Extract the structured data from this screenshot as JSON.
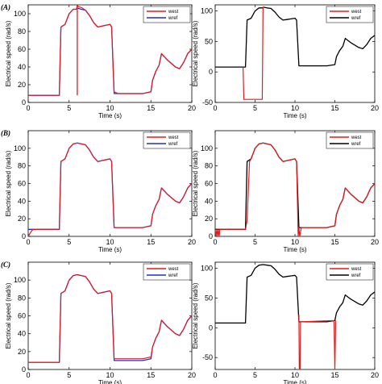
{
  "chart_data": [
    {
      "type": "line",
      "panel": "A-left",
      "row_label": "(A)",
      "xlabel": "Time (s)",
      "ylabel": "Electrical speed (rad/s)",
      "xlim": [
        0,
        20
      ],
      "ylim": [
        0,
        110
      ],
      "xticks": [
        0,
        5,
        10,
        15,
        20
      ],
      "yticks": [
        0,
        20,
        40,
        60,
        80,
        100
      ],
      "legend": "top-right",
      "series": [
        {
          "name": "west",
          "color": "#e8191c",
          "x": [
            0,
            0.5,
            1,
            1.5,
            2,
            2.5,
            3,
            3.5,
            3.8,
            4,
            4.5,
            5,
            5.5,
            5.9,
            6,
            6.1,
            6.5,
            7,
            7.5,
            8,
            8.5,
            9,
            9.5,
            10,
            10.2,
            10.5,
            11,
            12,
            13,
            14,
            15,
            15.2,
            15.6,
            16,
            16.3,
            16.7,
            17,
            17.5,
            18,
            18.5,
            19,
            19.5,
            20
          ],
          "y": [
            8,
            8,
            8,
            8,
            8,
            8,
            8,
            8,
            8,
            85,
            88,
            100,
            105,
            105,
            110,
            108,
            107,
            104,
            98,
            90,
            85,
            86,
            87,
            88,
            85,
            12,
            10,
            10,
            10,
            10,
            12,
            25,
            35,
            42,
            55,
            51,
            48,
            44,
            40,
            38,
            45,
            55,
            60
          ],
          "spike": {
            "x": 6,
            "y_min": 8,
            "y_max": 110
          }
        },
        {
          "name": "wref",
          "color": "#1a2fd6",
          "x": [
            0,
            0.5,
            1,
            1.5,
            2,
            2.5,
            3,
            3.5,
            3.8,
            4,
            4.5,
            5,
            5.5,
            5.9,
            6,
            6.1,
            6.5,
            7,
            7.5,
            8,
            8.5,
            9,
            9.5,
            10,
            10.2,
            10.5,
            11,
            12,
            13,
            14,
            15,
            15.2,
            15.6,
            16,
            16.3,
            16.7,
            17,
            17.5,
            18,
            18.5,
            19,
            19.5,
            20
          ],
          "y": [
            8,
            8,
            8,
            8,
            8,
            8,
            8,
            8,
            8,
            85,
            88,
            100,
            105,
            105,
            106,
            106,
            105,
            104,
            98,
            90,
            85,
            86,
            87,
            88,
            85,
            10,
            10,
            10,
            10,
            10,
            12,
            25,
            35,
            42,
            55,
            51,
            48,
            44,
            40,
            38,
            45,
            55,
            60
          ]
        }
      ]
    },
    {
      "type": "line",
      "panel": "A-right",
      "xlabel": "Time (s)",
      "ylabel": "Electrical speed (rad/s)",
      "xlim": [
        0,
        20
      ],
      "ylim": [
        -50,
        110
      ],
      "xticks": [
        0,
        5,
        10,
        15,
        20
      ],
      "yticks": [
        -50,
        0,
        50,
        100
      ],
      "legend": "top-right",
      "series": [
        {
          "name": "west",
          "color": "#e8191c",
          "x": [
            3.5,
            3.6,
            5.9,
            6,
            6.1
          ],
          "y": [
            8,
            -45,
            -45,
            106,
            106
          ]
        },
        {
          "name": "wref",
          "color": "#000000",
          "x": [
            0,
            0.5,
            1,
            1.5,
            2,
            2.5,
            3,
            3.5,
            3.8,
            4,
            4.5,
            5,
            5.5,
            5.9,
            6,
            6.1,
            6.5,
            7,
            7.5,
            8,
            8.5,
            9,
            9.5,
            10,
            10.2,
            10.5,
            11,
            12,
            13,
            14,
            15,
            15.2,
            15.6,
            16,
            16.3,
            16.7,
            17,
            17.5,
            18,
            18.5,
            19,
            19.5,
            20
          ],
          "y": [
            8,
            8,
            8,
            8,
            8,
            8,
            8,
            8,
            8,
            85,
            88,
            100,
            105,
            105,
            106,
            106,
            105,
            104,
            98,
            90,
            85,
            86,
            87,
            88,
            85,
            10,
            10,
            10,
            10,
            10,
            12,
            25,
            35,
            42,
            55,
            51,
            48,
            44,
            40,
            38,
            45,
            55,
            60
          ]
        }
      ]
    },
    {
      "type": "line",
      "panel": "B-left",
      "row_label": "(B)",
      "xlabel": "Time (s)",
      "ylabel": "Electrical speed (rad/s)",
      "xlim": [
        0,
        20
      ],
      "ylim": [
        0,
        120
      ],
      "xticks": [
        0,
        5,
        10,
        15,
        20
      ],
      "yticks": [
        0,
        20,
        40,
        60,
        80,
        100
      ],
      "legend": "top-right",
      "series": [
        {
          "name": "west",
          "color": "#e8191c",
          "x": [
            0,
            0.2,
            0.4,
            0.6,
            1,
            2,
            3,
            3.5,
            3.8,
            4,
            4.5,
            5,
            5.5,
            6,
            6.5,
            7,
            7.5,
            8,
            8.5,
            9,
            9.5,
            10,
            10.2,
            10.5,
            11,
            12,
            13,
            14,
            15,
            15.2,
            15.6,
            16,
            16.3,
            16.7,
            17,
            17.5,
            18,
            18.5,
            19,
            19.5,
            20
          ],
          "y": [
            0,
            3,
            6,
            8,
            8,
            8,
            8,
            8,
            8,
            85,
            88,
            100,
            105,
            106,
            105,
            104,
            98,
            90,
            85,
            86,
            87,
            88,
            85,
            10,
            10,
            10,
            10,
            10,
            12,
            25,
            35,
            42,
            55,
            51,
            48,
            44,
            40,
            38,
            45,
            55,
            60
          ]
        },
        {
          "name": "wref",
          "color": "#1a2fd6",
          "x": [
            0,
            0.5,
            1,
            1.5,
            2,
            2.5,
            3,
            3.5,
            3.8,
            4,
            4.5,
            5,
            5.5,
            6,
            6.5,
            7,
            7.5,
            8,
            8.5,
            9,
            9.5,
            10,
            10.2,
            10.5,
            11,
            12,
            13,
            14,
            15,
            15.2,
            15.6,
            16,
            16.3,
            16.7,
            17,
            17.5,
            18,
            18.5,
            19,
            19.5,
            20
          ],
          "y": [
            8,
            8,
            8,
            8,
            8,
            8,
            8,
            8,
            8,
            85,
            88,
            100,
            105,
            106,
            105,
            104,
            98,
            90,
            85,
            86,
            87,
            88,
            85,
            10,
            10,
            10,
            10,
            10,
            12,
            25,
            35,
            42,
            55,
            51,
            48,
            44,
            40,
            38,
            45,
            55,
            60
          ]
        }
      ]
    },
    {
      "type": "line",
      "panel": "B-right",
      "xlabel": "Time (s)",
      "ylabel": "Electrical speed (rad/s)",
      "xlim": [
        0,
        20
      ],
      "ylim": [
        0,
        120
      ],
      "xticks": [
        0,
        5,
        10,
        15,
        20
      ],
      "yticks": [
        0,
        20,
        40,
        60,
        80,
        100
      ],
      "legend": "top-right",
      "series": [
        {
          "name": "west",
          "color": "#e8191c",
          "x": [
            0,
            0.1,
            0.2,
            0.3,
            0.4,
            0.5,
            0.6,
            0.8,
            1,
            2,
            3,
            3.5,
            3.8,
            4,
            4.3,
            4.5,
            5,
            5.5,
            6,
            6.5,
            7,
            7.5,
            8,
            8.5,
            9,
            9.5,
            10,
            10.2,
            10.4,
            10.5,
            10.6,
            10.8,
            11,
            12,
            13,
            14,
            15,
            15.2,
            15.6,
            16,
            16.3,
            16.7,
            17,
            17.5,
            18,
            18.5,
            19,
            19.5,
            20
          ],
          "y": [
            8,
            0,
            8,
            0,
            8,
            0,
            8,
            8,
            8,
            8,
            8,
            8,
            8,
            18,
            85,
            88,
            100,
            105,
            106,
            105,
            104,
            98,
            90,
            85,
            86,
            87,
            88,
            85,
            0,
            10,
            0,
            10,
            10,
            10,
            10,
            10,
            12,
            25,
            35,
            42,
            55,
            51,
            48,
            44,
            40,
            38,
            45,
            55,
            60
          ]
        },
        {
          "name": "wref",
          "color": "#000000",
          "x": [
            0,
            0.5,
            1,
            1.5,
            2,
            2.5,
            3,
            3.5,
            3.8,
            4,
            4.5,
            5,
            5.5,
            6,
            6.5,
            7,
            7.5,
            8,
            8.5,
            9,
            9.5,
            10,
            10.2,
            10.5,
            11,
            12,
            13,
            14,
            15,
            15.2,
            15.6,
            16,
            16.3,
            16.7,
            17,
            17.5,
            18,
            18.5,
            19,
            19.5,
            20
          ],
          "y": [
            8,
            8,
            8,
            8,
            8,
            8,
            8,
            8,
            8,
            85,
            88,
            100,
            105,
            106,
            105,
            104,
            98,
            90,
            85,
            86,
            87,
            88,
            85,
            10,
            10,
            10,
            10,
            10,
            12,
            25,
            35,
            42,
            55,
            51,
            48,
            44,
            40,
            38,
            45,
            55,
            60
          ]
        }
      ]
    },
    {
      "type": "line",
      "panel": "C-left",
      "row_label": "(C)",
      "xlabel": "Time (s)",
      "ylabel": "Electrical speed (rad/s)",
      "xlim": [
        0,
        20
      ],
      "ylim": [
        0,
        120
      ],
      "xticks": [
        0,
        5,
        10,
        15,
        20
      ],
      "yticks": [
        0,
        20,
        40,
        60,
        80,
        100
      ],
      "legend": "top-right",
      "series": [
        {
          "name": "west",
          "color": "#e8191c",
          "x": [
            0,
            0.5,
            1,
            1.5,
            2,
            2.5,
            3,
            3.5,
            3.8,
            4,
            4.5,
            5,
            5.5,
            6,
            6.5,
            7,
            7.5,
            8,
            8.5,
            9,
            9.5,
            10,
            10.2,
            10.5,
            11,
            12,
            13,
            14,
            15,
            15.2,
            15.6,
            16,
            16.3,
            16.7,
            17,
            17.5,
            18,
            18.5,
            19,
            19.5,
            20
          ],
          "y": [
            8,
            8,
            8,
            8,
            8,
            8,
            8,
            8,
            8,
            85,
            88,
            100,
            105,
            106,
            105,
            104,
            98,
            90,
            85,
            86,
            87,
            88,
            85,
            12,
            12,
            12,
            12,
            12,
            14,
            25,
            35,
            42,
            55,
            51,
            48,
            44,
            40,
            38,
            45,
            55,
            60
          ]
        },
        {
          "name": "wref",
          "color": "#1a2fd6",
          "x": [
            0,
            0.5,
            1,
            1.5,
            2,
            2.5,
            3,
            3.5,
            3.8,
            4,
            4.5,
            5,
            5.5,
            6,
            6.5,
            7,
            7.5,
            8,
            8.5,
            9,
            9.5,
            10,
            10.2,
            10.5,
            11,
            12,
            13,
            14,
            15,
            15.2,
            15.6,
            16,
            16.3,
            16.7,
            17,
            17.5,
            18,
            18.5,
            19,
            19.5,
            20
          ],
          "y": [
            8,
            8,
            8,
            8,
            8,
            8,
            8,
            8,
            8,
            85,
            88,
            100,
            105,
            106,
            105,
            104,
            98,
            90,
            85,
            86,
            87,
            88,
            85,
            10,
            10,
            10,
            10,
            10,
            12,
            25,
            35,
            42,
            55,
            51,
            48,
            44,
            40,
            38,
            45,
            55,
            60
          ]
        }
      ]
    },
    {
      "type": "line",
      "panel": "C-right",
      "xlabel": "Time (s)",
      "ylabel": "Electrical speed (rad/s)",
      "xlim": [
        0,
        20
      ],
      "ylim": [
        -70,
        110
      ],
      "xticks": [
        0,
        5,
        10,
        15,
        20
      ],
      "yticks": [
        -50,
        0,
        50,
        100
      ],
      "legend": "top-right",
      "series": [
        {
          "name": "west",
          "color": "#e8191c",
          "x": [
            10.5,
            10.55,
            10.65,
            10.7,
            14.9,
            15,
            15.1
          ],
          "y": [
            22,
            -70,
            -70,
            10,
            12,
            -70,
            12
          ]
        },
        {
          "name": "wref",
          "color": "#000000",
          "x": [
            0,
            0.5,
            1,
            1.5,
            2,
            2.5,
            3,
            3.5,
            3.8,
            4,
            4.5,
            5,
            5.5,
            6,
            6.5,
            7,
            7.5,
            8,
            8.5,
            9,
            9.5,
            10,
            10.2,
            10.5,
            11,
            12,
            13,
            14,
            15,
            15.2,
            15.6,
            16,
            16.3,
            16.7,
            17,
            17.5,
            18,
            18.5,
            19,
            19.5,
            20
          ],
          "y": [
            8,
            8,
            8,
            8,
            8,
            8,
            8,
            8,
            8,
            85,
            88,
            100,
            105,
            106,
            105,
            104,
            98,
            90,
            85,
            86,
            87,
            88,
            85,
            10,
            10,
            10,
            10,
            10,
            12,
            25,
            35,
            42,
            55,
            51,
            48,
            44,
            40,
            38,
            45,
            55,
            60
          ]
        }
      ]
    }
  ]
}
